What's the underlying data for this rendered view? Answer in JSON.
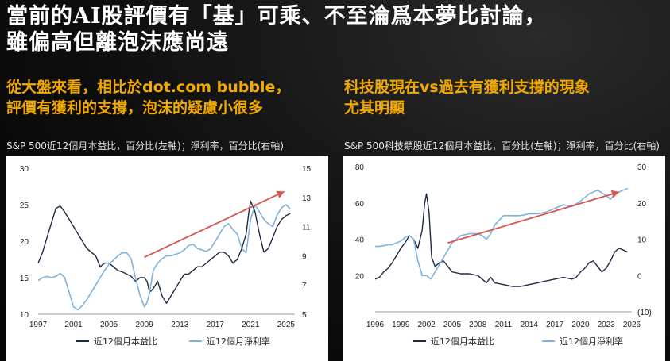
{
  "headline": {
    "line1": "當前的AI股評價有「基」可乘、不至淪爲本夢比討論，",
    "line2": "雖偏高但離泡沫應尚遠"
  },
  "left_panel": {
    "subtitle_line1": "從大盤來看，相比於dot.com bubble，",
    "subtitle_line2": "評價有獲利的支撐，泡沫的疑慮小很多",
    "caption": "S&P 500近12個月本益比，百分比(左軸)；淨利率，百分比(右軸)"
  },
  "right_panel": {
    "subtitle_line1": "科技股現在vs過去有獲利支撐的現象",
    "subtitle_line2": "尤其明顯",
    "caption": "S&P 500科技類股近12個月本益比，百分比(左軸)；淨利率，百分比(右軸)"
  },
  "colors": {
    "pe_line": "#1f2a44",
    "margin_line": "#7fb2dc",
    "arrow": "#d9534f",
    "subtitle": "#f2a900"
  },
  "chart_data": [
    {
      "type": "line",
      "title": "S&P 500近12個月本益比，百分比(左軸)；淨利率，百分比(右軸)",
      "x_range": [
        1997,
        2026
      ],
      "x_ticks": [
        "1997",
        "2001",
        "2005",
        "2009",
        "2013",
        "2017",
        "2021",
        "2025"
      ],
      "x_tick_values": [
        1997,
        2001,
        2005,
        2009,
        2013,
        2017,
        2021,
        2025
      ],
      "y_left": {
        "range": [
          10,
          30
        ],
        "ticks": [
          "10",
          "15",
          "20",
          "25",
          "30"
        ],
        "tick_values": [
          10,
          15,
          20,
          25,
          30
        ]
      },
      "y_right": {
        "range": [
          5,
          15
        ],
        "ticks": [
          "5",
          "7",
          "9",
          "11",
          "13",
          "15"
        ],
        "tick_values": [
          5,
          7,
          9,
          11,
          13,
          15
        ]
      },
      "series": [
        {
          "name": "近12個月本益比",
          "axis": "left",
          "x": [
            1997,
            1997.5,
            1998,
            1998.5,
            1999,
            1999.5,
            2000,
            2000.5,
            2001,
            2001.5,
            2002,
            2002.5,
            2003,
            2003.5,
            2004,
            2004.5,
            2005,
            2005.5,
            2006,
            2006.5,
            2007,
            2007.5,
            2008,
            2008.5,
            2009,
            2009.3,
            2009.6,
            2010,
            2010.5,
            2011,
            2011.5,
            2012,
            2012.5,
            2013,
            2013.5,
            2014,
            2014.5,
            2015,
            2015.5,
            2016,
            2016.5,
            2017,
            2017.5,
            2018,
            2018.5,
            2019,
            2019.5,
            2020,
            2020.5,
            2020.8,
            2021,
            2021.5,
            2022,
            2022.5,
            2023,
            2023.5,
            2024,
            2024.5,
            2025,
            2025.5
          ],
          "values": [
            17,
            18.5,
            20.5,
            22.5,
            24.5,
            24.8,
            24,
            23,
            22,
            21,
            20,
            19,
            18.5,
            18,
            16.5,
            17,
            17,
            16.5,
            16,
            15.8,
            15.5,
            15.2,
            14.5,
            15,
            15,
            14.5,
            13,
            13.5,
            14.5,
            12.5,
            11.5,
            12.5,
            13.5,
            14.5,
            15.5,
            15.5,
            16,
            16.5,
            16.5,
            17,
            17.5,
            18,
            18.5,
            18.5,
            18,
            17,
            17.5,
            19,
            21,
            24,
            25.5,
            24,
            21,
            18.5,
            19,
            20.5,
            22,
            23,
            23.5,
            23.8
          ]
        },
        {
          "name": "近12個月淨利率",
          "axis": "right",
          "x": [
            1997,
            1997.5,
            1998,
            1998.5,
            1999,
            1999.5,
            2000,
            2000.5,
            2001,
            2001.5,
            2002,
            2002.5,
            2003,
            2003.5,
            2004,
            2004.5,
            2005,
            2005.5,
            2006,
            2006.5,
            2007,
            2007.5,
            2008,
            2008.5,
            2009,
            2009.3,
            2009.6,
            2010,
            2010.5,
            2011,
            2011.5,
            2012,
            2012.5,
            2013,
            2013.5,
            2014,
            2014.5,
            2015,
            2015.5,
            2016,
            2016.5,
            2017,
            2017.5,
            2018,
            2018.5,
            2019,
            2019.5,
            2020,
            2020.5,
            2021,
            2021.5,
            2022,
            2022.5,
            2023,
            2023.5,
            2024,
            2024.5,
            2025,
            2025.5
          ],
          "values": [
            7.3,
            7.5,
            7.6,
            7.5,
            7.6,
            7.8,
            7.5,
            6.5,
            5.5,
            5.3,
            5.6,
            6.0,
            6.5,
            7.0,
            7.5,
            8.0,
            8.4,
            8.7,
            9.0,
            9.2,
            9.2,
            8.8,
            7.5,
            6.3,
            5.5,
            5.8,
            6.5,
            8.0,
            8.5,
            8.8,
            9.0,
            9.0,
            9.1,
            9.2,
            9.4,
            9.7,
            9.8,
            9.5,
            9.4,
            9.3,
            9.5,
            10.0,
            10.5,
            11.0,
            11.2,
            10.8,
            10.5,
            9.5,
            9.2,
            11.5,
            12.5,
            12.0,
            11.5,
            11.2,
            11.0,
            11.8,
            12.3,
            12.5,
            12.2
          ]
        }
      ],
      "arrow": {
        "axis": "left",
        "from": [
          2009,
          17.8
        ],
        "to": [
          2024.8,
          26.8
        ]
      },
      "legend": [
        "近12個月本益比",
        "近12個月淨利率"
      ]
    },
    {
      "type": "line",
      "title": "S&P 500科技類股近12個月本益比，百分比(左軸)；淨利率，百分比(右軸)",
      "x_range": [
        1996,
        2026
      ],
      "x_ticks": [
        "1996",
        "1999",
        "2002",
        "2005",
        "2008",
        "2011",
        "2014",
        "2017",
        "2020",
        "2023",
        "2026"
      ],
      "x_tick_values": [
        1996,
        1999,
        2002,
        2005,
        2008,
        2011,
        2014,
        2017,
        2020,
        2023,
        2026
      ],
      "y_left": {
        "range": [
          0,
          80
        ],
        "ticks": [
          "20",
          "40",
          "60",
          "80"
        ],
        "tick_values": [
          20,
          40,
          60,
          80
        ]
      },
      "y_right": {
        "range": [
          -10,
          30
        ],
        "ticks": [
          "(10)",
          "0",
          "10",
          "20",
          "30"
        ],
        "tick_values": [
          -10,
          0,
          10,
          20,
          30
        ]
      },
      "series": [
        {
          "name": "近12個月本益比",
          "axis": "left",
          "x": [
            1996,
            1996.5,
            1997,
            1997.5,
            1998,
            1998.5,
            1999,
            1999.5,
            2000,
            2000.5,
            2001,
            2001.5,
            2001.8,
            2002,
            2002.3,
            2002.6,
            2003,
            2003.5,
            2004,
            2004.5,
            2005,
            2006,
            2007,
            2008,
            2008.5,
            2009,
            2009.5,
            2010,
            2011,
            2012,
            2013,
            2014,
            2015,
            2016,
            2017,
            2018,
            2019,
            2019.5,
            2020,
            2020.5,
            2021,
            2021.5,
            2022,
            2022.5,
            2023,
            2023.5,
            2024,
            2024.5,
            2025,
            2025.5
          ],
          "values": [
            18,
            19,
            22,
            24,
            27,
            31,
            35,
            38,
            42,
            40,
            35,
            45,
            60,
            65,
            55,
            30,
            25,
            27,
            28,
            25,
            22,
            21,
            21,
            20,
            18,
            16,
            19,
            16,
            15,
            14,
            14,
            15,
            16,
            17,
            18,
            19,
            18,
            19,
            22,
            24,
            27,
            28,
            25,
            22,
            24,
            28,
            33,
            35,
            34,
            33
          ]
        },
        {
          "name": "近12個月淨利率",
          "axis": "right",
          "x": [
            1996,
            1996.5,
            1997,
            1997.5,
            1998,
            1998.5,
            1999,
            1999.5,
            2000,
            2000.5,
            2001,
            2001.5,
            2002,
            2002.5,
            2003,
            2003.5,
            2004,
            2004.5,
            2005,
            2005.5,
            2006,
            2007,
            2008,
            2008.5,
            2009,
            2009.5,
            2010,
            2011,
            2012,
            2013,
            2014,
            2015,
            2016,
            2017,
            2018,
            2019,
            2020,
            2021,
            2022,
            2023,
            2023.5,
            2024,
            2024.5,
            2025,
            2025.5
          ],
          "values": [
            8,
            8,
            8.2,
            8.5,
            8.5,
            9,
            9.5,
            10.5,
            11,
            10,
            4,
            0,
            0,
            -1,
            1,
            3,
            5,
            7,
            9,
            10,
            11,
            11.5,
            11.5,
            11,
            10,
            11.5,
            14,
            16.5,
            16.5,
            16.5,
            17,
            17,
            17.5,
            18.5,
            19.5,
            19,
            20.5,
            22.5,
            23.5,
            22,
            21,
            22.5,
            23,
            23.5,
            24
          ]
        }
      ],
      "arrow": {
        "axis": "left",
        "from": [
          2004.5,
          38
        ],
        "to": [
          2024.5,
          66
        ]
      },
      "legend": [
        "近12個月本益比",
        "近12個月淨利率"
      ]
    }
  ]
}
